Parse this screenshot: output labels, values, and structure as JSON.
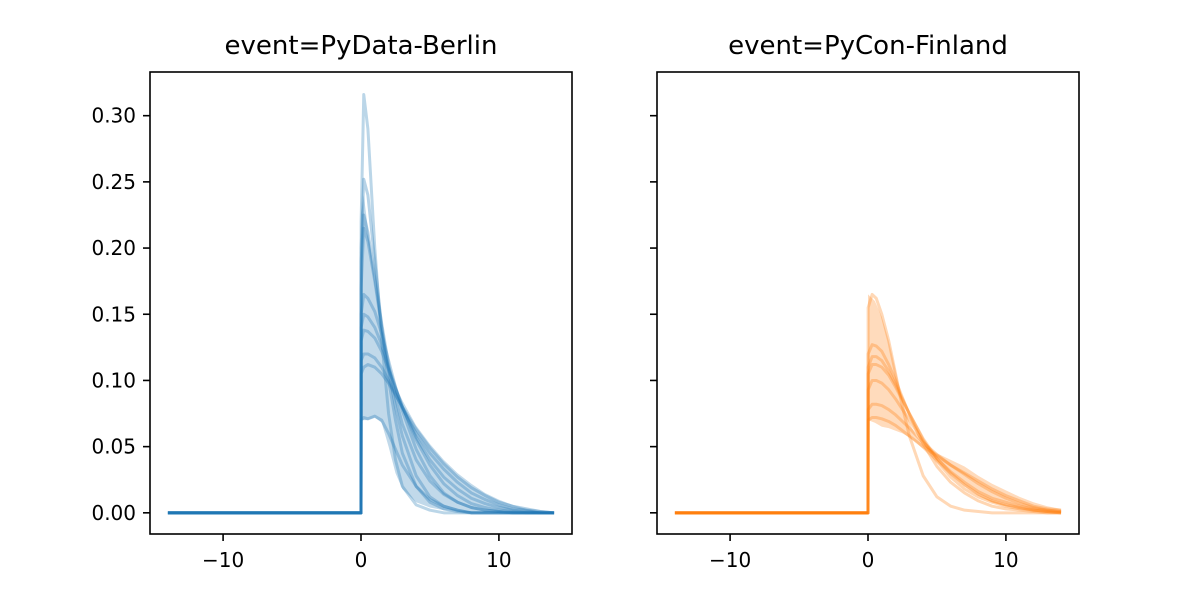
{
  "chart_data": [
    {
      "type": "line",
      "title": "event=PyData-Berlin",
      "xlabel": "",
      "ylabel": "",
      "xlim": [
        -15.3,
        15.3
      ],
      "ylim": [
        -0.016,
        0.333
      ],
      "xticks": [
        -10,
        0,
        10
      ],
      "xtick_labels": [
        "−10",
        "0",
        "10"
      ],
      "yticks": [
        0.0,
        0.05,
        0.1,
        0.15,
        0.2,
        0.25,
        0.3
      ],
      "ytick_labels": [
        "0.00",
        "0.05",
        "0.10",
        "0.15",
        "0.20",
        "0.25",
        "0.30"
      ],
      "grid": false,
      "color": "#1f77b4",
      "band": {
        "x": [
          0.0,
          0.2,
          0.5,
          1.0,
          1.5,
          2.0,
          2.5,
          3.0,
          4.0,
          5.0,
          6.0,
          7.0,
          8.0,
          9.0,
          10.0,
          11.0,
          12.0,
          13.0,
          14.0
        ],
        "lower": [
          0.07,
          0.07,
          0.07,
          0.072,
          0.068,
          0.05,
          0.03,
          0.018,
          0.008,
          0.004,
          0.002,
          0.001,
          0.0,
          0.0,
          0.0,
          0.0,
          0.0,
          0.0,
          0.0
        ],
        "upper": [
          0.225,
          0.24,
          0.215,
          0.175,
          0.14,
          0.112,
          0.096,
          0.085,
          0.066,
          0.052,
          0.04,
          0.03,
          0.022,
          0.015,
          0.01,
          0.006,
          0.003,
          0.001,
          0.0
        ]
      },
      "lines": [
        {
          "x": [
            -14,
            0,
            0.01,
            0.2,
            0.5,
            1.0,
            1.5,
            2.0,
            2.5,
            3.0,
            4.0,
            5.0,
            6.0,
            7.0,
            8.0,
            9.0,
            10.0,
            11.0,
            12.0,
            13.0,
            14.0
          ],
          "y": [
            0,
            0,
            0.22,
            0.316,
            0.29,
            0.2,
            0.13,
            0.075,
            0.04,
            0.02,
            0.006,
            0.002,
            0.0,
            0.0,
            0.0,
            0.0,
            0.0,
            0.0,
            0.0,
            0.0,
            0.0
          ]
        },
        {
          "x": [
            -14,
            0,
            0.01,
            0.2,
            0.5,
            1.0,
            1.5,
            2.0,
            2.5,
            3.0,
            4.0,
            5.0,
            6.0,
            7.0,
            8.0,
            9.0,
            10.0,
            11.0,
            12.0,
            13.0,
            14.0
          ],
          "y": [
            0,
            0,
            0.2,
            0.252,
            0.24,
            0.19,
            0.14,
            0.1,
            0.07,
            0.045,
            0.02,
            0.008,
            0.003,
            0.001,
            0.0,
            0.0,
            0.0,
            0.0,
            0.0,
            0.0,
            0.0
          ]
        },
        {
          "x": [
            -14,
            0,
            0.01,
            0.2,
            0.5,
            1.0,
            1.5,
            2.0,
            2.5,
            3.0,
            4.0,
            5.0,
            6.0,
            7.0,
            8.0,
            9.0,
            10.0,
            11.0,
            12.0,
            13.0,
            14.0
          ],
          "y": [
            0,
            0,
            0.17,
            0.215,
            0.205,
            0.175,
            0.14,
            0.108,
            0.08,
            0.058,
            0.028,
            0.012,
            0.005,
            0.002,
            0.0,
            0.0,
            0.0,
            0.0,
            0.0,
            0.0,
            0.0
          ]
        },
        {
          "x": [
            -14,
            0,
            0.01,
            0.2,
            0.5,
            1.0,
            1.5,
            2.0,
            2.5,
            3.0,
            4.0,
            5.0,
            6.0,
            7.0,
            8.0,
            9.0,
            10.0,
            11.0,
            12.0,
            13.0,
            14.0
          ],
          "y": [
            0,
            0,
            0.15,
            0.165,
            0.162,
            0.152,
            0.135,
            0.115,
            0.095,
            0.077,
            0.048,
            0.028,
            0.015,
            0.008,
            0.004,
            0.002,
            0.001,
            0.0,
            0.0,
            0.0,
            0.0
          ]
        },
        {
          "x": [
            -14,
            0,
            0.01,
            0.2,
            0.5,
            1.0,
            1.5,
            2.0,
            2.5,
            3.0,
            4.0,
            5.0,
            6.0,
            7.0,
            8.0,
            9.0,
            10.0,
            11.0,
            12.0,
            13.0,
            14.0
          ],
          "y": [
            0,
            0,
            0.14,
            0.15,
            0.148,
            0.14,
            0.127,
            0.11,
            0.095,
            0.08,
            0.055,
            0.036,
            0.022,
            0.013,
            0.007,
            0.004,
            0.002,
            0.001,
            0.0,
            0.0,
            0.0
          ]
        },
        {
          "x": [
            -14,
            0,
            0.01,
            0.2,
            0.5,
            1.0,
            1.5,
            2.0,
            2.5,
            3.0,
            4.0,
            5.0,
            6.0,
            7.0,
            8.0,
            9.0,
            10.0,
            11.0,
            12.0,
            13.0,
            14.0
          ],
          "y": [
            0,
            0,
            0.13,
            0.138,
            0.137,
            0.132,
            0.122,
            0.108,
            0.094,
            0.08,
            0.057,
            0.04,
            0.027,
            0.018,
            0.011,
            0.007,
            0.004,
            0.002,
            0.001,
            0.0,
            0.0
          ]
        },
        {
          "x": [
            -14,
            0,
            0.01,
            0.2,
            0.5,
            1.0,
            1.5,
            2.0,
            2.5,
            3.0,
            4.0,
            5.0,
            6.0,
            7.0,
            8.0,
            9.0,
            10.0,
            11.0,
            12.0,
            13.0,
            14.0
          ],
          "y": [
            0,
            0,
            0.115,
            0.12,
            0.12,
            0.117,
            0.11,
            0.1,
            0.09,
            0.079,
            0.06,
            0.045,
            0.033,
            0.023,
            0.015,
            0.01,
            0.006,
            0.003,
            0.002,
            0.001,
            0.0
          ]
        },
        {
          "x": [
            -14,
            0,
            0.01,
            0.2,
            0.5,
            1.0,
            1.5,
            2.0,
            2.5,
            3.0,
            4.0,
            5.0,
            6.0,
            7.0,
            8.0,
            9.0,
            10.0,
            11.0,
            12.0,
            13.0,
            14.0
          ],
          "y": [
            0,
            0,
            0.105,
            0.11,
            0.112,
            0.11,
            0.105,
            0.098,
            0.089,
            0.08,
            0.063,
            0.049,
            0.037,
            0.027,
            0.019,
            0.013,
            0.008,
            0.005,
            0.003,
            0.001,
            0.0
          ]
        },
        {
          "x": [
            -14,
            0,
            0.01,
            0.2,
            0.5,
            1.0,
            1.5,
            2.0,
            2.5,
            3.0,
            4.0,
            5.0,
            6.0,
            7.0,
            8.0,
            9.0,
            10.0,
            11.0,
            12.0,
            13.0,
            14.0
          ],
          "y": [
            0,
            0,
            0.07,
            0.072,
            0.071,
            0.073,
            0.07,
            0.06,
            0.048,
            0.036,
            0.02,
            0.01,
            0.005,
            0.002,
            0.0,
            0.0,
            0.0,
            0.0,
            0.0,
            0.0,
            0.0
          ]
        },
        {
          "x": [
            -14,
            0,
            0.01,
            0.2,
            0.5,
            1.0,
            1.5,
            2.0,
            2.5,
            3.0,
            4.0,
            5.0,
            6.0,
            7.0,
            8.0,
            9.0,
            10.0,
            11.0,
            12.0,
            13.0,
            14.0
          ],
          "y": [
            0,
            0,
            0.19,
            0.225,
            0.212,
            0.178,
            0.143,
            0.112,
            0.087,
            0.067,
            0.04,
            0.024,
            0.014,
            0.008,
            0.004,
            0.002,
            0.001,
            0.0,
            0.0,
            0.0,
            0.0
          ]
        }
      ]
    },
    {
      "type": "line",
      "title": "event=PyCon-Finland",
      "xlabel": "",
      "ylabel": "",
      "xlim": [
        -15.3,
        15.3
      ],
      "ylim": [
        -0.016,
        0.333
      ],
      "xticks": [
        -10,
        0,
        10
      ],
      "xtick_labels": [
        "−10",
        "0",
        "10"
      ],
      "yticks": [
        0.0,
        0.05,
        0.1,
        0.15,
        0.2,
        0.25,
        0.3
      ],
      "ytick_labels": [],
      "grid": false,
      "color": "#ff7f0e",
      "band": {
        "x": [
          0.0,
          0.5,
          1.0,
          1.5,
          2.0,
          2.5,
          3.0,
          3.5,
          4.0,
          5.0,
          6.0,
          7.0,
          8.0,
          9.0,
          10.0,
          11.0,
          12.0,
          13.0,
          14.0
        ],
        "lower": [
          0.07,
          0.068,
          0.065,
          0.064,
          0.062,
          0.06,
          0.057,
          0.053,
          0.048,
          0.038,
          0.028,
          0.02,
          0.013,
          0.008,
          0.005,
          0.003,
          0.001,
          0.0,
          0.0
        ],
        "upper": [
          0.165,
          0.16,
          0.148,
          0.13,
          0.108,
          0.085,
          0.068,
          0.058,
          0.052,
          0.045,
          0.04,
          0.035,
          0.028,
          0.022,
          0.017,
          0.012,
          0.008,
          0.005,
          0.003
        ]
      },
      "lines": [
        {
          "x": [
            -14,
            0,
            0.01,
            0.3,
            0.6,
            1.0,
            1.5,
            2.0,
            2.5,
            3.0,
            4.0,
            5.0,
            6.0,
            7.0,
            8.0,
            9.0,
            10.0,
            11.0,
            12.0,
            13.0,
            14.0
          ],
          "y": [
            0,
            0,
            0.155,
            0.165,
            0.162,
            0.15,
            0.13,
            0.105,
            0.08,
            0.058,
            0.028,
            0.012,
            0.005,
            0.002,
            0.001,
            0.0,
            0.0,
            0.0,
            0.0,
            0.0,
            0.0
          ]
        },
        {
          "x": [
            -14,
            0,
            0.01,
            0.3,
            0.6,
            1.0,
            1.5,
            2.0,
            2.5,
            3.0,
            4.0,
            5.0,
            6.0,
            7.0,
            8.0,
            9.0,
            10.0,
            11.0,
            12.0,
            13.0,
            14.0
          ],
          "y": [
            0,
            0,
            0.12,
            0.127,
            0.126,
            0.122,
            0.112,
            0.1,
            0.087,
            0.074,
            0.052,
            0.035,
            0.023,
            0.015,
            0.009,
            0.005,
            0.003,
            0.002,
            0.001,
            0.0,
            0.0
          ]
        },
        {
          "x": [
            -14,
            0,
            0.01,
            0.3,
            0.6,
            1.0,
            1.5,
            2.0,
            2.5,
            3.0,
            4.0,
            5.0,
            6.0,
            7.0,
            8.0,
            9.0,
            10.0,
            11.0,
            12.0,
            13.0,
            14.0
          ],
          "y": [
            0,
            0,
            0.105,
            0.112,
            0.112,
            0.11,
            0.104,
            0.095,
            0.085,
            0.075,
            0.056,
            0.041,
            0.03,
            0.021,
            0.014,
            0.009,
            0.006,
            0.004,
            0.002,
            0.001,
            0.0
          ]
        },
        {
          "x": [
            -14,
            0,
            0.01,
            0.3,
            0.6,
            1.0,
            1.5,
            2.0,
            2.5,
            3.0,
            4.0,
            5.0,
            6.0,
            7.0,
            8.0,
            9.0,
            10.0,
            11.0,
            12.0,
            13.0,
            14.0
          ],
          "y": [
            0,
            0,
            0.093,
            0.1,
            0.1,
            0.098,
            0.093,
            0.086,
            0.078,
            0.07,
            0.054,
            0.041,
            0.031,
            0.023,
            0.016,
            0.011,
            0.008,
            0.005,
            0.003,
            0.002,
            0.001
          ]
        },
        {
          "x": [
            -14,
            0,
            0.01,
            0.3,
            0.6,
            1.0,
            1.5,
            2.0,
            2.5,
            3.0,
            4.0,
            5.0,
            6.0,
            7.0,
            8.0,
            9.0,
            10.0,
            11.0,
            12.0,
            13.0,
            14.0
          ],
          "y": [
            0,
            0,
            0.078,
            0.082,
            0.082,
            0.081,
            0.078,
            0.074,
            0.069,
            0.064,
            0.053,
            0.044,
            0.036,
            0.029,
            0.022,
            0.016,
            0.011,
            0.007,
            0.004,
            0.002,
            0.001
          ]
        },
        {
          "x": [
            -14,
            0,
            0.01,
            0.3,
            0.6,
            1.0,
            1.5,
            2.0,
            2.5,
            3.0,
            4.0,
            5.0,
            6.0,
            7.0,
            8.0,
            9.0,
            10.0,
            11.0,
            12.0,
            13.0,
            14.0
          ],
          "y": [
            0,
            0,
            0.07,
            0.072,
            0.072,
            0.071,
            0.069,
            0.066,
            0.062,
            0.058,
            0.05,
            0.043,
            0.036,
            0.03,
            0.024,
            0.018,
            0.013,
            0.009,
            0.005,
            0.003,
            0.002
          ]
        },
        {
          "x": [
            -14,
            0,
            0.01,
            0.3,
            0.6,
            1.0,
            1.5,
            2.0,
            2.5,
            3.0,
            4.0,
            5.0,
            6.0,
            7.0,
            8.0,
            9.0,
            10.0,
            11.0,
            12.0,
            13.0,
            14.0
          ],
          "y": [
            0,
            0,
            0.11,
            0.118,
            0.118,
            0.115,
            0.107,
            0.097,
            0.086,
            0.075,
            0.055,
            0.039,
            0.027,
            0.018,
            0.012,
            0.008,
            0.005,
            0.003,
            0.002,
            0.001,
            0.0
          ]
        }
      ]
    }
  ]
}
